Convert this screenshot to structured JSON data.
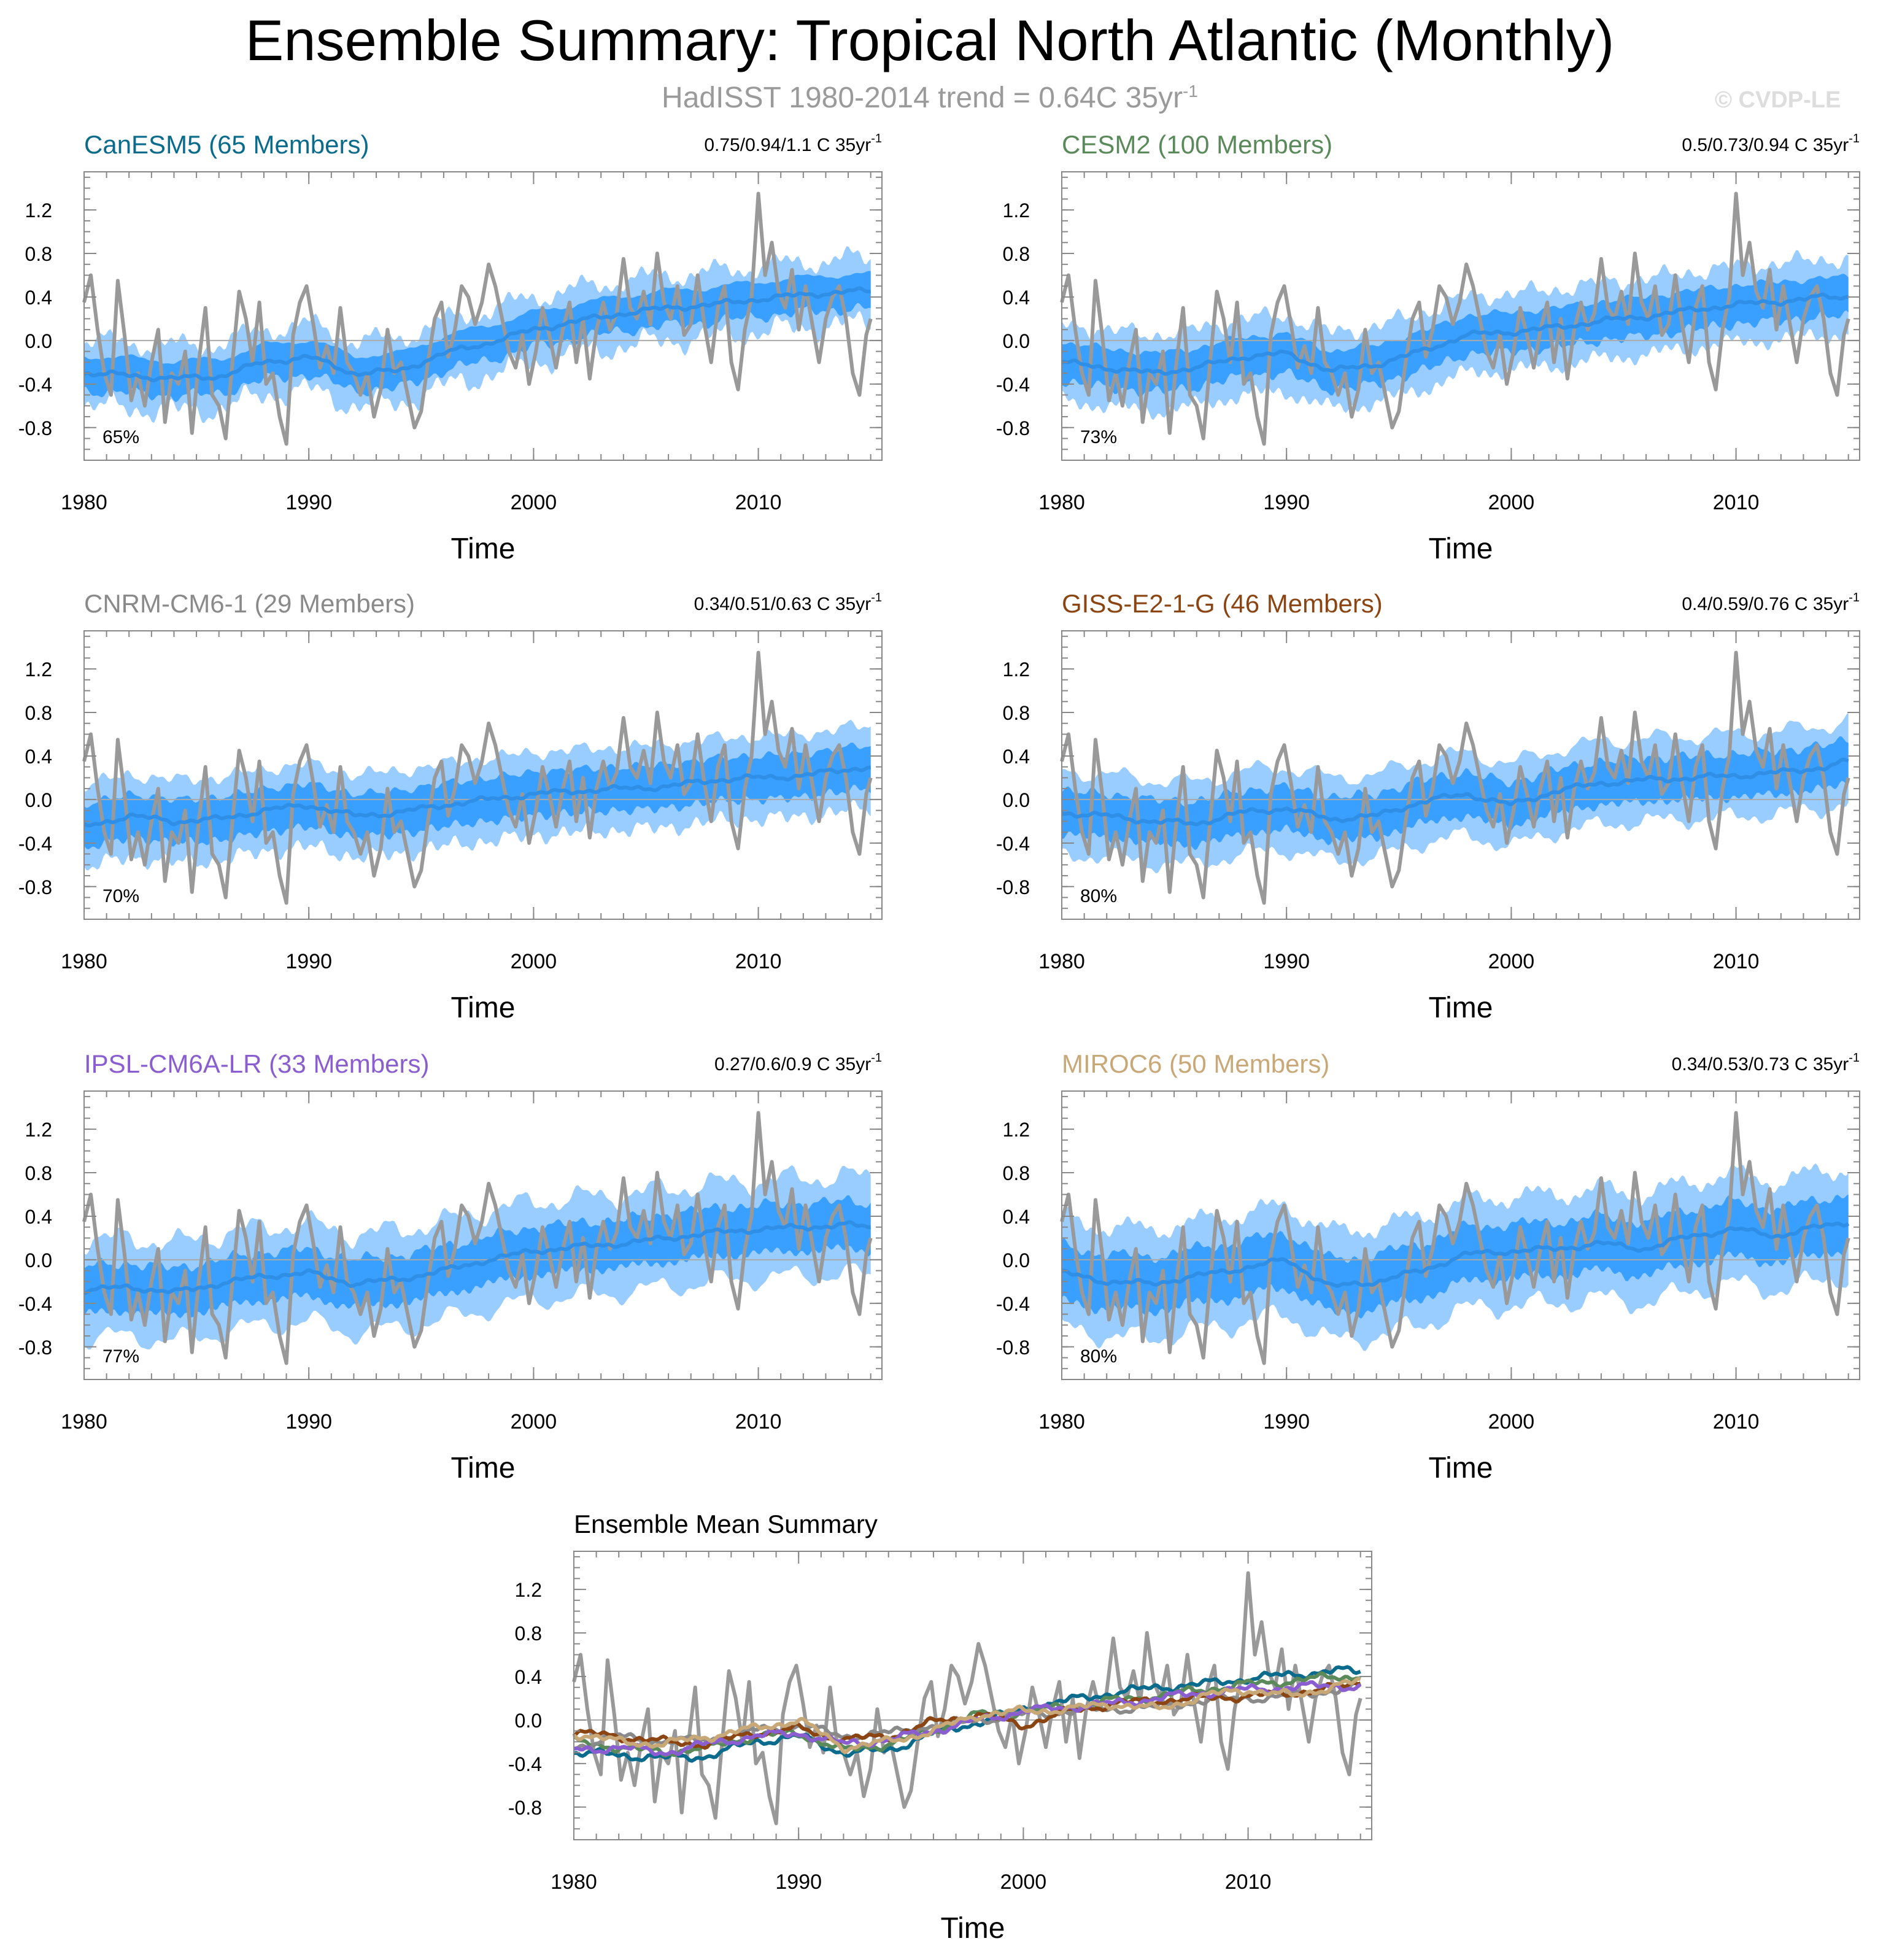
{
  "page": {
    "title": "Ensemble Summary: Tropical North Atlantic (Monthly)",
    "subtitle": "HadISST 1980-2014 trend = 0.64C 35yr",
    "subtitle_sup": "-1",
    "copyright": "© CVDP-LE"
  },
  "colors": {
    "observed": "#999999",
    "ensemble_mean": "#2f8fe6",
    "spread_inner": "#3aa0ff",
    "spread_outer": "#99ccff",
    "zero_line": "#aaaaaa",
    "axis": "#888888"
  },
  "chart_data": [
    {
      "type": "line",
      "title": "CanESM5 (65 Members)",
      "title_color": "#0b6b8c",
      "trend_label": "0.75/0.94/1.1 C 35yr",
      "trend_sup": "-1",
      "percent_label": "65%",
      "xlabel": "Time",
      "x_range": [
        1980,
        2015.5
      ],
      "ylim": [
        -1.1,
        1.55
      ],
      "yticks": [
        -0.8,
        -0.4,
        0.0,
        0.4,
        0.8,
        1.2
      ],
      "ytick_labels": [
        "-0.8",
        "-0.4",
        "0.0",
        "0.4",
        "0.8",
        "1.2"
      ],
      "xticks": [
        1980,
        1990,
        2000,
        2010
      ],
      "xtick_labels": [
        "1980",
        "1990",
        "2000",
        "2010"
      ],
      "series": [
        {
          "name": "ensemble mean",
          "x": [
            1980,
            1982,
            1984,
            1986,
            1988,
            1990,
            1992,
            1994,
            1996,
            1998,
            2000,
            2002,
            2004,
            2006,
            2008,
            2010,
            2012,
            2014,
            2015
          ],
          "y": [
            -0.3,
            -0.32,
            -0.35,
            -0.33,
            -0.2,
            -0.15,
            -0.3,
            -0.28,
            -0.12,
            -0.02,
            0.1,
            0.18,
            0.25,
            0.3,
            0.33,
            0.38,
            0.42,
            0.45,
            0.45
          ]
        },
        {
          "name": "inner spread",
          "half_width": 0.16
        },
        {
          "name": "outer spread",
          "half_width": 0.3
        }
      ]
    },
    {
      "type": "line",
      "title": "CESM2 (100 Members)",
      "title_color": "#5a8a5a",
      "trend_label": "0.5/0.73/0.94 C 35yr",
      "trend_sup": "-1",
      "percent_label": "73%",
      "xlabel": "Time",
      "x_range": [
        1980,
        2015.5
      ],
      "ylim": [
        -1.1,
        1.55
      ],
      "yticks": [
        -0.8,
        -0.4,
        0.0,
        0.4,
        0.8,
        1.2
      ],
      "ytick_labels": [
        "-0.8",
        "-0.4",
        "0.0",
        "0.4",
        "0.8",
        "1.2"
      ],
      "xticks": [
        1980,
        1990,
        2000,
        2010
      ],
      "xtick_labels": [
        "1980",
        "1990",
        "2000",
        "2010"
      ],
      "series": [
        {
          "name": "ensemble mean",
          "x": [
            1980,
            1982,
            1984,
            1986,
            1988,
            1990,
            1992,
            1994,
            1996,
            1998,
            2000,
            2002,
            2004,
            2006,
            2008,
            2010,
            2012,
            2014,
            2015
          ],
          "y": [
            -0.2,
            -0.25,
            -0.3,
            -0.25,
            -0.15,
            -0.12,
            -0.28,
            -0.22,
            -0.1,
            0.05,
            0.08,
            0.12,
            0.18,
            0.22,
            0.28,
            0.33,
            0.36,
            0.4,
            0.4
          ]
        },
        {
          "name": "inner spread",
          "half_width": 0.18
        },
        {
          "name": "outer spread",
          "half_width": 0.35
        }
      ]
    },
    {
      "type": "line",
      "title": "CNRM-CM6-1 (29 Members)",
      "title_color": "#8a8a8a",
      "trend_label": "0.34/0.51/0.63 C 35yr",
      "trend_sup": "-1",
      "percent_label": "70%",
      "xlabel": "Time",
      "x_range": [
        1980,
        2015.5
      ],
      "ylim": [
        -1.1,
        1.55
      ],
      "yticks": [
        -0.8,
        -0.4,
        0.0,
        0.4,
        0.8,
        1.2
      ],
      "ytick_labels": [
        "-0.8",
        "-0.4",
        "0.0",
        "0.4",
        "0.8",
        "1.2"
      ],
      "xticks": [
        1980,
        1990,
        2000,
        2010
      ],
      "xtick_labels": [
        "1980",
        "1990",
        "2000",
        "2010"
      ],
      "series": [
        {
          "name": "ensemble mean",
          "x": [
            1980,
            1982,
            1984,
            1986,
            1988,
            1990,
            1992,
            1994,
            1996,
            1998,
            2000,
            2002,
            2004,
            2006,
            2008,
            2010,
            2012,
            2014,
            2015
          ],
          "y": [
            -0.25,
            -0.15,
            -0.2,
            -0.18,
            -0.1,
            -0.05,
            -0.15,
            -0.12,
            -0.05,
            0.0,
            0.05,
            0.08,
            0.1,
            0.12,
            0.18,
            0.2,
            0.22,
            0.28,
            0.3
          ]
        },
        {
          "name": "inner spread",
          "half_width": 0.2
        },
        {
          "name": "outer spread",
          "half_width": 0.38
        }
      ]
    },
    {
      "type": "line",
      "title": "GISS-E2-1-G (46 Members)",
      "title_color": "#8b4513",
      "trend_label": "0.4/0.59/0.76 C 35yr",
      "trend_sup": "-1",
      "percent_label": "80%",
      "xlabel": "Time",
      "x_range": [
        1980,
        2015.5
      ],
      "ylim": [
        -1.1,
        1.55
      ],
      "yticks": [
        -0.8,
        -0.4,
        0.0,
        0.4,
        0.8,
        1.2
      ],
      "ytick_labels": [
        "-0.8",
        "-0.4",
        "0.0",
        "0.4",
        "0.8",
        "1.2"
      ],
      "xticks": [
        1980,
        1990,
        2000,
        2010
      ],
      "xtick_labels": [
        "1980",
        "1990",
        "2000",
        "2010"
      ],
      "series": [
        {
          "name": "ensemble mean",
          "x": [
            1980,
            1982,
            1984,
            1986,
            1988,
            1990,
            1992,
            1994,
            1996,
            1998,
            2000,
            2002,
            2004,
            2006,
            2008,
            2010,
            2012,
            2014,
            2015
          ],
          "y": [
            -0.12,
            -0.15,
            -0.2,
            -0.22,
            -0.12,
            -0.08,
            -0.18,
            -0.15,
            -0.02,
            0.05,
            -0.05,
            0.08,
            0.15,
            0.18,
            0.2,
            0.22,
            0.25,
            0.3,
            0.35
          ]
        },
        {
          "name": "inner spread",
          "half_width": 0.2
        },
        {
          "name": "outer spread",
          "half_width": 0.38
        }
      ]
    },
    {
      "type": "line",
      "title": "IPSL-CM6A-LR (33 Members)",
      "title_color": "#8a5ed0",
      "trend_label": "0.27/0.6/0.9 C 35yr",
      "trend_sup": "-1",
      "percent_label": "77%",
      "xlabel": "Time",
      "x_range": [
        1980,
        2015.5
      ],
      "ylim": [
        -1.1,
        1.55
      ],
      "yticks": [
        -0.8,
        -0.4,
        0.0,
        0.4,
        0.8,
        1.2
      ],
      "ytick_labels": [
        "-0.8",
        "-0.4",
        "0.0",
        "0.4",
        "0.8",
        "1.2"
      ],
      "xticks": [
        1980,
        1990,
        2000,
        2010
      ],
      "xtick_labels": [
        "1980",
        "1990",
        "2000",
        "2010"
      ],
      "series": [
        {
          "name": "ensemble mean",
          "x": [
            1980,
            1982,
            1984,
            1986,
            1988,
            1990,
            1992,
            1994,
            1996,
            1998,
            2000,
            2002,
            2004,
            2006,
            2008,
            2010,
            2012,
            2014,
            2015
          ],
          "y": [
            -0.28,
            -0.25,
            -0.3,
            -0.22,
            -0.15,
            -0.12,
            -0.22,
            -0.18,
            -0.1,
            0.0,
            0.08,
            0.12,
            0.15,
            0.2,
            0.25,
            0.28,
            0.3,
            0.32,
            0.3
          ]
        },
        {
          "name": "inner spread",
          "half_width": 0.22
        },
        {
          "name": "outer spread",
          "half_width": 0.45
        }
      ]
    },
    {
      "type": "line",
      "title": "MIROC6 (50 Members)",
      "title_color": "#c9a878",
      "trend_label": "0.34/0.53/0.73 C 35yr",
      "trend_sup": "-1",
      "percent_label": "80%",
      "xlabel": "Time",
      "x_range": [
        1980,
        2015.5
      ],
      "ylim": [
        -1.1,
        1.55
      ],
      "yticks": [
        -0.8,
        -0.4,
        0.0,
        0.4,
        0.8,
        1.2
      ],
      "ytick_labels": [
        "-0.8",
        "-0.4",
        "0.0",
        "0.4",
        "0.8",
        "1.2"
      ],
      "xticks": [
        1980,
        1990,
        2000,
        2010
      ],
      "xtick_labels": [
        "1980",
        "1990",
        "2000",
        "2010"
      ],
      "series": [
        {
          "name": "ensemble mean",
          "x": [
            1980,
            1982,
            1984,
            1986,
            1988,
            1990,
            1992,
            1994,
            1996,
            1998,
            2000,
            2002,
            2004,
            2006,
            2008,
            2010,
            2012,
            2014,
            2015
          ],
          "y": [
            -0.12,
            -0.2,
            -0.22,
            -0.15,
            -0.08,
            0.0,
            -0.25,
            -0.2,
            -0.1,
            0.05,
            0.08,
            0.1,
            0.15,
            0.1,
            0.22,
            0.28,
            0.22,
            0.32,
            0.35
          ]
        },
        {
          "name": "inner spread",
          "half_width": 0.25
        },
        {
          "name": "outer spread",
          "half_width": 0.5
        }
      ]
    },
    {
      "type": "line",
      "title": "Ensemble Mean Summary",
      "title_color": "#000000",
      "xlabel": "Time",
      "x_range": [
        1980,
        2015.5
      ],
      "ylim": [
        -1.1,
        1.55
      ],
      "yticks": [
        -0.8,
        -0.4,
        0.0,
        0.4,
        0.8,
        1.2
      ],
      "ytick_labels": [
        "-0.8",
        "-0.4",
        "0.0",
        "0.4",
        "0.8",
        "1.2"
      ],
      "xticks": [
        1980,
        1990,
        2000,
        2010
      ],
      "xtick_labels": [
        "1980",
        "1990",
        "2000",
        "2010"
      ],
      "series": [
        {
          "name": "CanESM5",
          "color": "#0b6b8c",
          "ref": 0
        },
        {
          "name": "CESM2",
          "color": "#5a8a5a",
          "ref": 1
        },
        {
          "name": "CNRM-CM6-1",
          "color": "#8a8a8a",
          "ref": 2
        },
        {
          "name": "GISS-E2-1-G",
          "color": "#8b4513",
          "ref": 3
        },
        {
          "name": "IPSL-CM6A-LR",
          "color": "#8a5ed0",
          "ref": 4
        },
        {
          "name": "MIROC6",
          "color": "#c9a878",
          "ref": 5
        }
      ]
    }
  ],
  "observed": {
    "name": "HadISST",
    "x": [
      1980.0,
      1980.3,
      1980.6,
      1980.9,
      1981.2,
      1981.5,
      1981.8,
      1982.1,
      1982.4,
      1982.7,
      1983.0,
      1983.3,
      1983.6,
      1983.9,
      1984.2,
      1984.5,
      1984.8,
      1985.1,
      1985.4,
      1985.7,
      1986.0,
      1986.3,
      1986.6,
      1986.9,
      1987.2,
      1987.5,
      1987.8,
      1988.1,
      1988.4,
      1988.7,
      1989.0,
      1989.3,
      1989.6,
      1989.9,
      1990.2,
      1990.5,
      1990.8,
      1991.1,
      1991.4,
      1991.7,
      1992.0,
      1992.3,
      1992.6,
      1992.9,
      1993.2,
      1993.5,
      1993.8,
      1994.1,
      1994.4,
      1994.7,
      1995.0,
      1995.3,
      1995.6,
      1995.9,
      1996.2,
      1996.5,
      1996.8,
      1997.1,
      1997.4,
      1997.7,
      1998.0,
      1998.3,
      1998.6,
      1998.9,
      1999.2,
      1999.5,
      1999.8,
      2000.1,
      2000.4,
      2000.7,
      2001.0,
      2001.3,
      2001.6,
      2001.9,
      2002.2,
      2002.5,
      2002.8,
      2003.1,
      2003.4,
      2003.7,
      2004.0,
      2004.3,
      2004.6,
      2004.9,
      2005.2,
      2005.5,
      2005.8,
      2006.1,
      2006.4,
      2006.7,
      2007.0,
      2007.3,
      2007.6,
      2007.9,
      2008.2,
      2008.5,
      2008.8,
      2009.1,
      2009.4,
      2009.7,
      2010.0,
      2010.3,
      2010.6,
      2010.9,
      2011.2,
      2011.5,
      2011.8,
      2012.1,
      2012.4,
      2012.7,
      2013.0,
      2013.3,
      2013.6,
      2013.9,
      2014.2,
      2014.5,
      2014.8,
      2015.0
    ],
    "y": [
      0.35,
      0.6,
      0.1,
      -0.3,
      -0.5,
      0.55,
      0.05,
      -0.55,
      -0.3,
      -0.6,
      -0.2,
      0.1,
      -0.75,
      -0.3,
      -0.4,
      -0.1,
      -0.85,
      -0.2,
      0.3,
      -0.5,
      -0.6,
      -0.9,
      -0.2,
      0.45,
      0.2,
      -0.2,
      0.35,
      -0.4,
      -0.3,
      -0.7,
      -0.95,
      0.05,
      0.35,
      0.5,
      0.15,
      -0.25,
      -0.05,
      -0.3,
      0.3,
      -0.2,
      -0.3,
      -0.5,
      -0.3,
      -0.7,
      -0.45,
      0.1,
      -0.3,
      -0.2,
      -0.5,
      -0.8,
      -0.65,
      -0.2,
      0.2,
      0.35,
      -0.15,
      0.1,
      0.5,
      0.4,
      0.15,
      0.35,
      0.7,
      0.5,
      0.2,
      -0.1,
      -0.25,
      0.05,
      -0.4,
      -0.1,
      0.3,
      0.05,
      -0.25,
      0.1,
      0.35,
      -0.2,
      0.2,
      -0.35,
      0.1,
      0.35,
      0.1,
      0.25,
      0.75,
      0.3,
      0.2,
      0.45,
      0.15,
      0.8,
      0.35,
      0.2,
      0.5,
      0.05,
      0.15,
      0.6,
      0.15,
      -0.2,
      0.3,
      0.5,
      -0.2,
      -0.45,
      0.1,
      0.4,
      1.35,
      0.6,
      0.9,
      0.45,
      0.3,
      0.65,
      0.1,
      0.5,
      0.15,
      -0.2,
      0.2,
      0.4,
      0.5,
      0.2,
      -0.3,
      -0.5,
      0.05,
      0.2
    ]
  }
}
